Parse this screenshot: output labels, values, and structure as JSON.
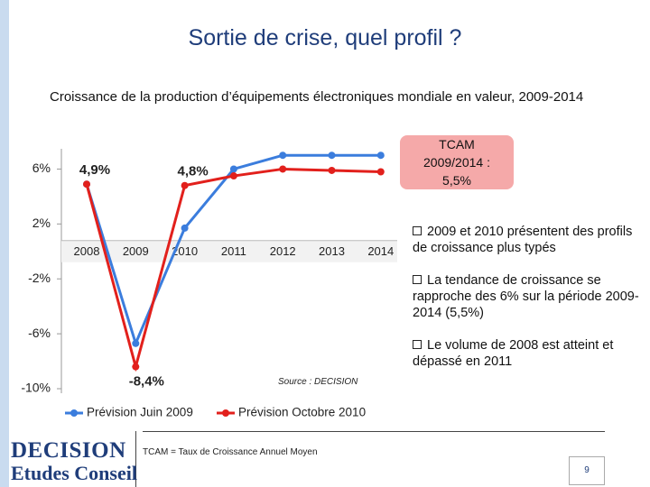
{
  "slide": {
    "title": "Sortie de crise, quel profil ?",
    "subtitle": "Croissance de la production d’équipements électroniques mondiale en valeur, 2009-2014",
    "callout": [
      "TCAM",
      "2009/2014 :",
      "5,5%"
    ],
    "bullets": [
      "2009 et 2010 présentent des profils de croissance plus typés",
      "La tendance de croissance se rapproche des 6% sur la période 2009-2014 (5,5%)",
      "Le volume de 2008 est atteint et dépassé en 2011"
    ],
    "source": "Source : DECISION",
    "footnote": "TCAM = Taux de Croissance Annuel Moyen",
    "page_number": "9",
    "logo": [
      "DECISION",
      "Etudes Conseil"
    ]
  },
  "chart_data": {
    "type": "line",
    "categories": [
      "2008",
      "2009",
      "2010",
      "2011",
      "2012",
      "2013",
      "2014"
    ],
    "series": [
      {
        "name": "Prévision Juin 2009",
        "color": "#3b7ddd",
        "values": [
          4.9,
          -6.7,
          1.7,
          6,
          7,
          7,
          7
        ]
      },
      {
        "name": "Prévision Octobre 2010",
        "color": "#e2201c",
        "values": [
          4.9,
          -8.4,
          4.8,
          5.5,
          6,
          5.9,
          5.8
        ],
        "value_labels": [
          "4,9%",
          "-8,4%",
          "4,8%",
          null,
          null,
          null,
          null
        ]
      }
    ],
    "ylim": [
      -10,
      8
    ],
    "yticks": [
      {
        "value": 6,
        "label": "6%"
      },
      {
        "value": 2,
        "label": "2%"
      },
      {
        "value": -2,
        "label": "-2%"
      },
      {
        "value": -6,
        "label": "-6%"
      },
      {
        "value": -10,
        "label": "-10%"
      }
    ],
    "grid": false,
    "legend": "bottom"
  }
}
